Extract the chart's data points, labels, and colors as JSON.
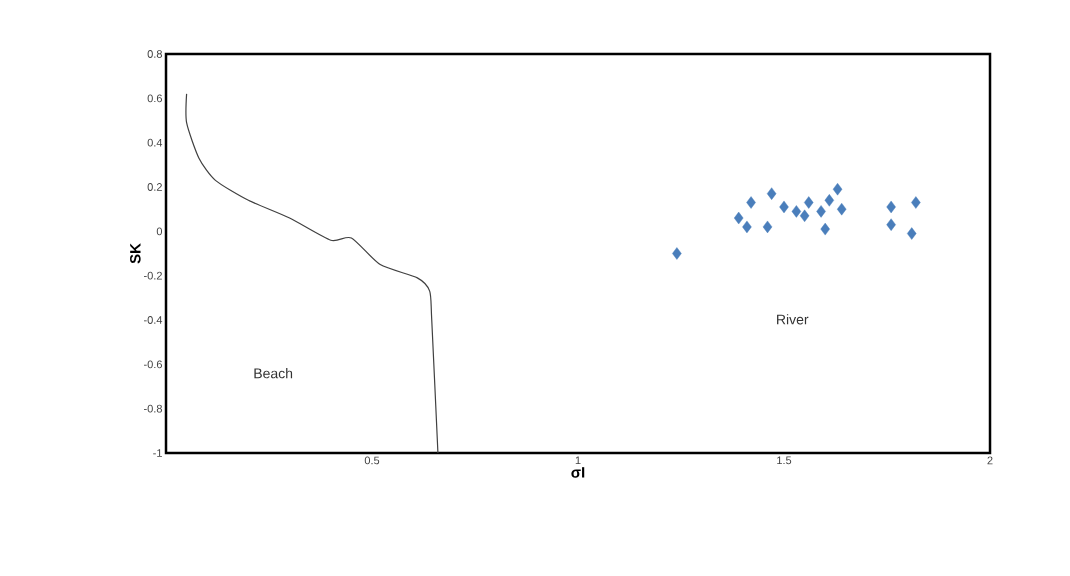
{
  "chart_data": {
    "type": "scatter",
    "xlabel": "σI",
    "ylabel": "SK",
    "xlim": [
      0,
      2
    ],
    "ylim": [
      -1,
      0.8
    ],
    "xticks": [
      0.5,
      1,
      1.5,
      2
    ],
    "yticks": [
      -1,
      -0.8,
      -0.6,
      -0.4,
      -0.2,
      0,
      0.2,
      0.4,
      0.6,
      0.8
    ],
    "grid": false,
    "legend": false,
    "annotations": [
      "Beach",
      "River"
    ],
    "series": [
      {
        "type": "line",
        "color": "#404040",
        "marker": "none",
        "line_style": "solid",
        "x": [
          0.05,
          0.05,
          0.08,
          0.12,
          0.2,
          0.3,
          0.4,
          0.45,
          0.52,
          0.61,
          0.64,
          0.645,
          0.66
        ],
        "values": [
          0.62,
          0.49,
          0.33,
          0.23,
          0.14,
          0.06,
          -0.04,
          -0.03,
          -0.15,
          -0.21,
          -0.27,
          -0.4,
          -1
        ]
      },
      {
        "color": "#4a7ebb",
        "marker": "diamond",
        "x": [
          1.24,
          1.47,
          1.39,
          1.42,
          1.41,
          1.46,
          1.5,
          1.53,
          1.56,
          1.59,
          1.61,
          1.63,
          1.64,
          1.6,
          1.55,
          1.76,
          1.82,
          1.76,
          1.81
        ],
        "values": [
          -0.1,
          0.17,
          0.06,
          0.13,
          0.02,
          0.02,
          0.11,
          0.09,
          0.13,
          0.09,
          0.14,
          0.19,
          0.1,
          0.01,
          0.07,
          0.11,
          0.13,
          0.03,
          -0.01
        ]
      }
    ]
  }
}
